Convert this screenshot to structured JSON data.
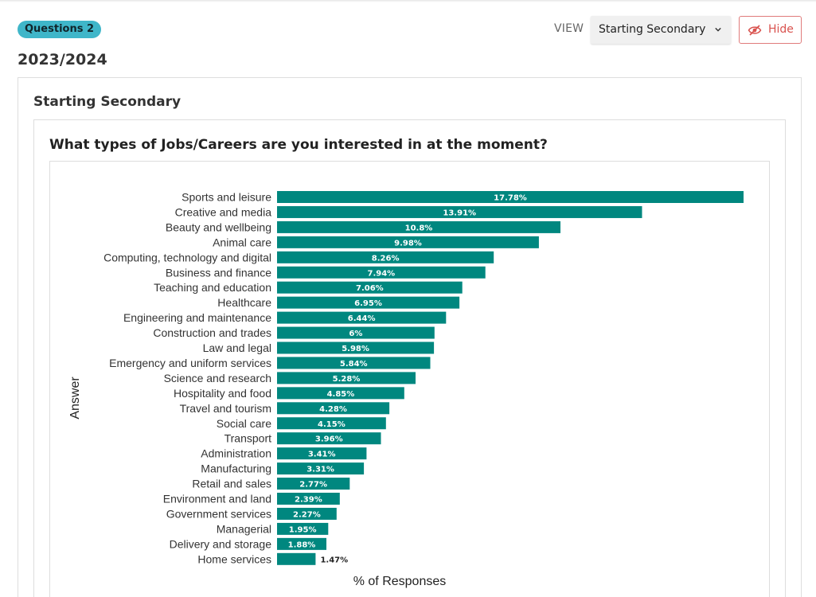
{
  "header": {
    "badge": "Questions 2",
    "year": "2023/2024",
    "view_label": "VIEW",
    "view_selected": "Starting Secondary",
    "hide_label": "Hide"
  },
  "section": {
    "title": "Starting Secondary",
    "question": "What types of Jobs/Careers are you interested in at the moment?"
  },
  "colors": {
    "bar": "#00877f",
    "badge": "#3fb6c9",
    "hide": "#d9534f"
  },
  "chart_data": {
    "type": "bar",
    "orientation": "horizontal",
    "title": "",
    "xlabel": "% of Responses",
    "ylabel": "Answer",
    "xlim": [
      0,
      17.78
    ],
    "categories": [
      "Sports and leisure",
      "Creative and media",
      "Beauty and wellbeing",
      "Animal care",
      "Computing, technology and digital",
      "Business and finance",
      "Teaching and education",
      "Healthcare",
      "Engineering and maintenance",
      "Construction and trades",
      "Law and legal",
      "Emergency and uniform services",
      "Science and research",
      "Hospitality and food",
      "Travel and tourism",
      "Social care",
      "Transport",
      "Administration",
      "Manufacturing",
      "Retail and sales",
      "Environment and land",
      "Government services",
      "Managerial",
      "Delivery and storage",
      "Home services"
    ],
    "values": [
      17.78,
      13.91,
      10.8,
      9.98,
      8.26,
      7.94,
      7.06,
      6.95,
      6.44,
      6,
      5.98,
      5.84,
      5.28,
      4.85,
      4.28,
      4.15,
      3.96,
      3.41,
      3.31,
      2.77,
      2.39,
      2.27,
      1.95,
      1.88,
      1.47
    ],
    "data_labels": [
      "17.78%",
      "13.91%",
      "10.8%",
      "9.98%",
      "8.26%",
      "7.94%",
      "7.06%",
      "6.95%",
      "6.44%",
      "6%",
      "5.98%",
      "5.84%",
      "5.28%",
      "4.85%",
      "4.28%",
      "4.15%",
      "3.96%",
      "3.41%",
      "3.31%",
      "2.77%",
      "2.39%",
      "2.27%",
      "1.95%",
      "1.88%",
      "1.47%"
    ],
    "grid": false,
    "legend": "none"
  }
}
